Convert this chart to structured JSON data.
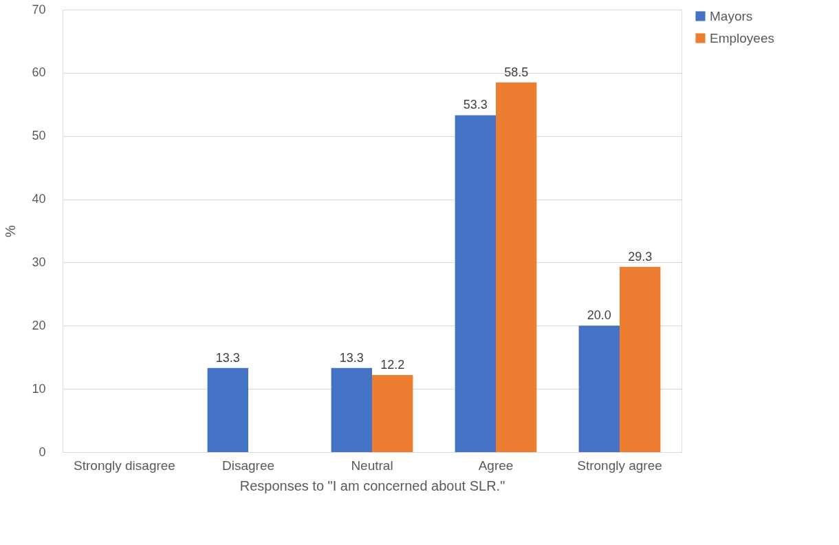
{
  "chart_data": {
    "type": "bar",
    "xlabel": "Responses to \"I am concerned about SLR.\"",
    "ylabel": "%",
    "categories": [
      "Strongly disagree",
      "Disagree",
      "Neutral",
      "Agree",
      "Strongly agree"
    ],
    "series": [
      {
        "name": "Mayors",
        "color": "#4472c4",
        "values": [
          null,
          13.3,
          13.3,
          53.3,
          20.0
        ],
        "value_labels": [
          null,
          "13.3",
          "13.3",
          "53.3",
          "20.0"
        ]
      },
      {
        "name": "Employees",
        "color": "#ed7d31",
        "values": [
          null,
          null,
          12.2,
          58.5,
          29.3
        ],
        "value_labels": [
          null,
          null,
          "12.2",
          "58.5",
          "29.3"
        ]
      }
    ],
    "ylim": [
      0,
      70
    ],
    "yticks": [
      0,
      10,
      20,
      30,
      40,
      50,
      60,
      70
    ],
    "grid": "y",
    "legend": "right"
  }
}
